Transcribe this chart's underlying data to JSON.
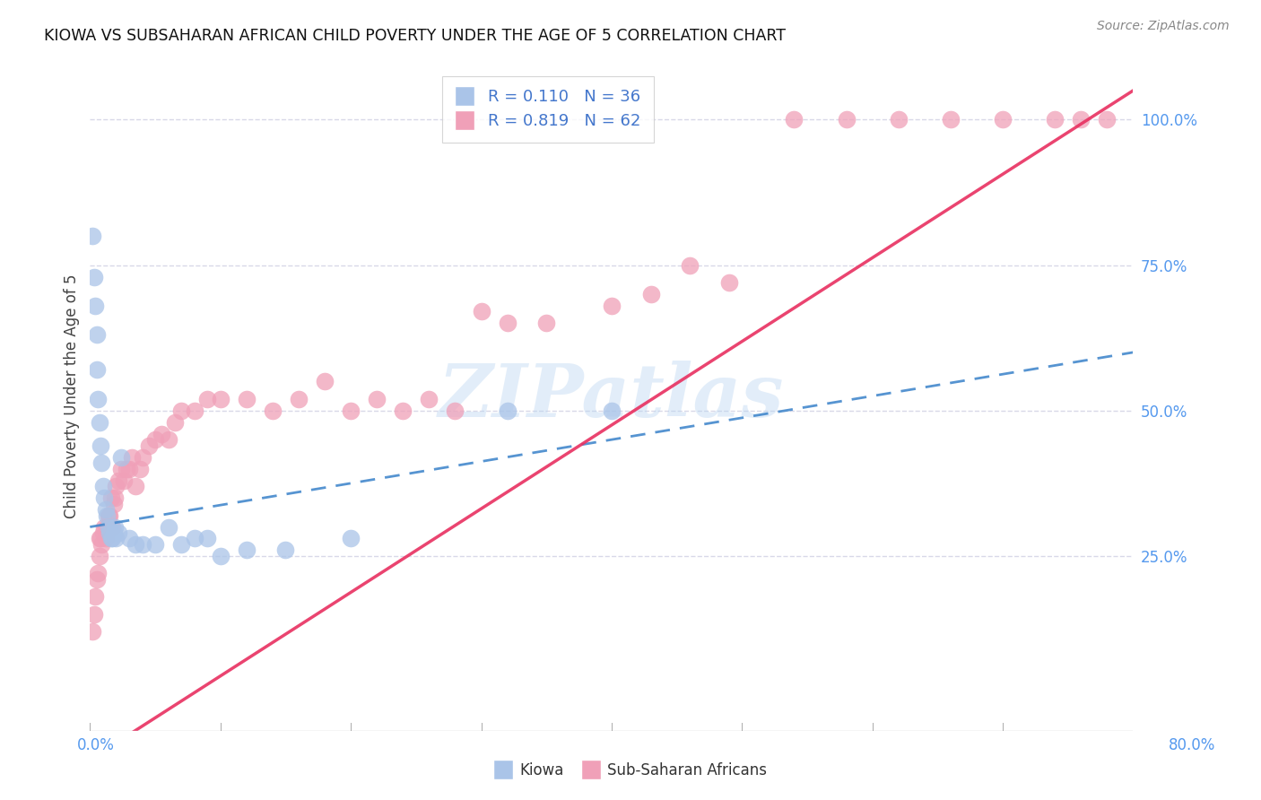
{
  "title": "KIOWA VS SUBSAHARAN AFRICAN CHILD POVERTY UNDER THE AGE OF 5 CORRELATION CHART",
  "source": "Source: ZipAtlas.com",
  "ylabel": "Child Poverty Under the Age of 5",
  "watermark": "ZIPatlas",
  "kiowa_color": "#aac4e8",
  "subsaharan_color": "#f0a0b8",
  "trend_blue_color": "#4488cc",
  "trend_pink_color": "#e83060",
  "background_color": "#ffffff",
  "grid_color": "#d8d8e8",
  "xlim": [
    0.0,
    0.8
  ],
  "ylim": [
    -0.05,
    1.1
  ],
  "blue_trend": [
    0.0,
    0.3,
    0.8,
    0.6
  ],
  "pink_trend": [
    0.0,
    -0.1,
    0.8,
    1.05
  ],
  "kiowa_x": [
    0.002,
    0.003,
    0.004,
    0.005,
    0.005,
    0.006,
    0.007,
    0.008,
    0.009,
    0.01,
    0.011,
    0.012,
    0.013,
    0.014,
    0.015,
    0.016,
    0.017,
    0.018,
    0.019,
    0.02,
    0.022,
    0.024,
    0.03,
    0.035,
    0.04,
    0.05,
    0.06,
    0.07,
    0.08,
    0.09,
    0.1,
    0.12,
    0.15,
    0.2,
    0.32,
    0.4
  ],
  "kiowa_y": [
    0.8,
    0.73,
    0.68,
    0.63,
    0.57,
    0.52,
    0.48,
    0.44,
    0.41,
    0.37,
    0.35,
    0.33,
    0.32,
    0.3,
    0.29,
    0.28,
    0.28,
    0.29,
    0.3,
    0.28,
    0.29,
    0.42,
    0.28,
    0.27,
    0.27,
    0.27,
    0.3,
    0.27,
    0.28,
    0.28,
    0.25,
    0.26,
    0.26,
    0.28,
    0.5,
    0.5
  ],
  "subsaharan_x": [
    0.002,
    0.003,
    0.004,
    0.005,
    0.006,
    0.007,
    0.007,
    0.008,
    0.009,
    0.01,
    0.011,
    0.012,
    0.013,
    0.014,
    0.015,
    0.016,
    0.017,
    0.018,
    0.019,
    0.02,
    0.022,
    0.024,
    0.026,
    0.028,
    0.03,
    0.032,
    0.035,
    0.038,
    0.04,
    0.045,
    0.05,
    0.055,
    0.06,
    0.065,
    0.07,
    0.08,
    0.09,
    0.1,
    0.12,
    0.14,
    0.16,
    0.18,
    0.2,
    0.22,
    0.24,
    0.26,
    0.28,
    0.3,
    0.32,
    0.35,
    0.4,
    0.43,
    0.46,
    0.49,
    0.54,
    0.58,
    0.62,
    0.66,
    0.7,
    0.74,
    0.76,
    0.78
  ],
  "subsaharan_y": [
    0.12,
    0.15,
    0.18,
    0.21,
    0.22,
    0.25,
    0.28,
    0.28,
    0.27,
    0.29,
    0.3,
    0.28,
    0.3,
    0.32,
    0.32,
    0.35,
    0.3,
    0.34,
    0.35,
    0.37,
    0.38,
    0.4,
    0.38,
    0.4,
    0.4,
    0.42,
    0.37,
    0.4,
    0.42,
    0.44,
    0.45,
    0.46,
    0.45,
    0.48,
    0.5,
    0.5,
    0.52,
    0.52,
    0.52,
    0.5,
    0.52,
    0.55,
    0.5,
    0.52,
    0.5,
    0.52,
    0.5,
    0.67,
    0.65,
    0.65,
    0.68,
    0.7,
    0.75,
    0.72,
    1.0,
    1.0,
    1.0,
    1.0,
    1.0,
    1.0,
    1.0,
    1.0
  ]
}
